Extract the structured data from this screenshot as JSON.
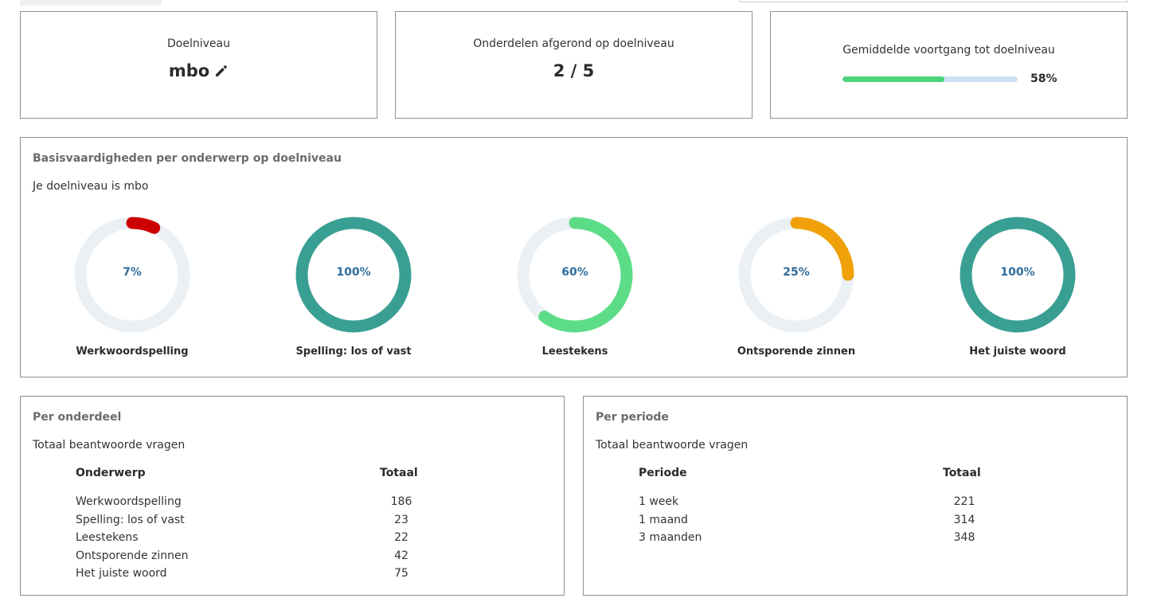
{
  "stats": {
    "doelniveau": {
      "label": "Doelniveau",
      "value": "mbo"
    },
    "onderdelen": {
      "label": "Onderdelen afgerond op doelniveau",
      "value": "2 / 5"
    },
    "voortgang": {
      "label": "Gemiddelde voortgang tot doelniveau",
      "percent": 58,
      "percent_label": "58%"
    }
  },
  "skills": {
    "title": "Basisvaardigheden per onderwerp op doelniveau",
    "subtitle": "Je doelniveau is mbo",
    "track_color": "#ebf0f5",
    "items": [
      {
        "name": "Werkwoordspelling",
        "percent": 7,
        "percent_label": "7%",
        "color": "#cc0000"
      },
      {
        "name": "Spelling: los of vast",
        "percent": 100,
        "percent_label": "100%",
        "color": "#3a9f93"
      },
      {
        "name": "Leestekens",
        "percent": 60,
        "percent_label": "60%",
        "color": "#5ddc87"
      },
      {
        "name": "Ontsporende zinnen",
        "percent": 25,
        "percent_label": "25%",
        "color": "#f0a10a"
      },
      {
        "name": "Het juiste woord",
        "percent": 100,
        "percent_label": "100%",
        "color": "#3a9f93"
      }
    ]
  },
  "per_onderdeel": {
    "title": "Per onderdeel",
    "subtitle": "Totaal beantwoorde vragen",
    "col_a": "Onderwerp",
    "col_b": "Totaal",
    "rows": [
      {
        "a": "Werkwoordspelling",
        "b": "186"
      },
      {
        "a": "Spelling: los of vast",
        "b": "23"
      },
      {
        "a": "Leestekens",
        "b": "22"
      },
      {
        "a": "Ontsporende zinnen",
        "b": "42"
      },
      {
        "a": "Het juiste woord",
        "b": "75"
      }
    ]
  },
  "per_periode": {
    "title": "Per periode",
    "subtitle": "Totaal beantwoorde vragen",
    "col_a": "Periode",
    "col_b": "Totaal",
    "rows": [
      {
        "a": "1 week",
        "b": "221"
      },
      {
        "a": "1 maand",
        "b": "314"
      },
      {
        "a": "3 maanden",
        "b": "348"
      }
    ]
  }
}
